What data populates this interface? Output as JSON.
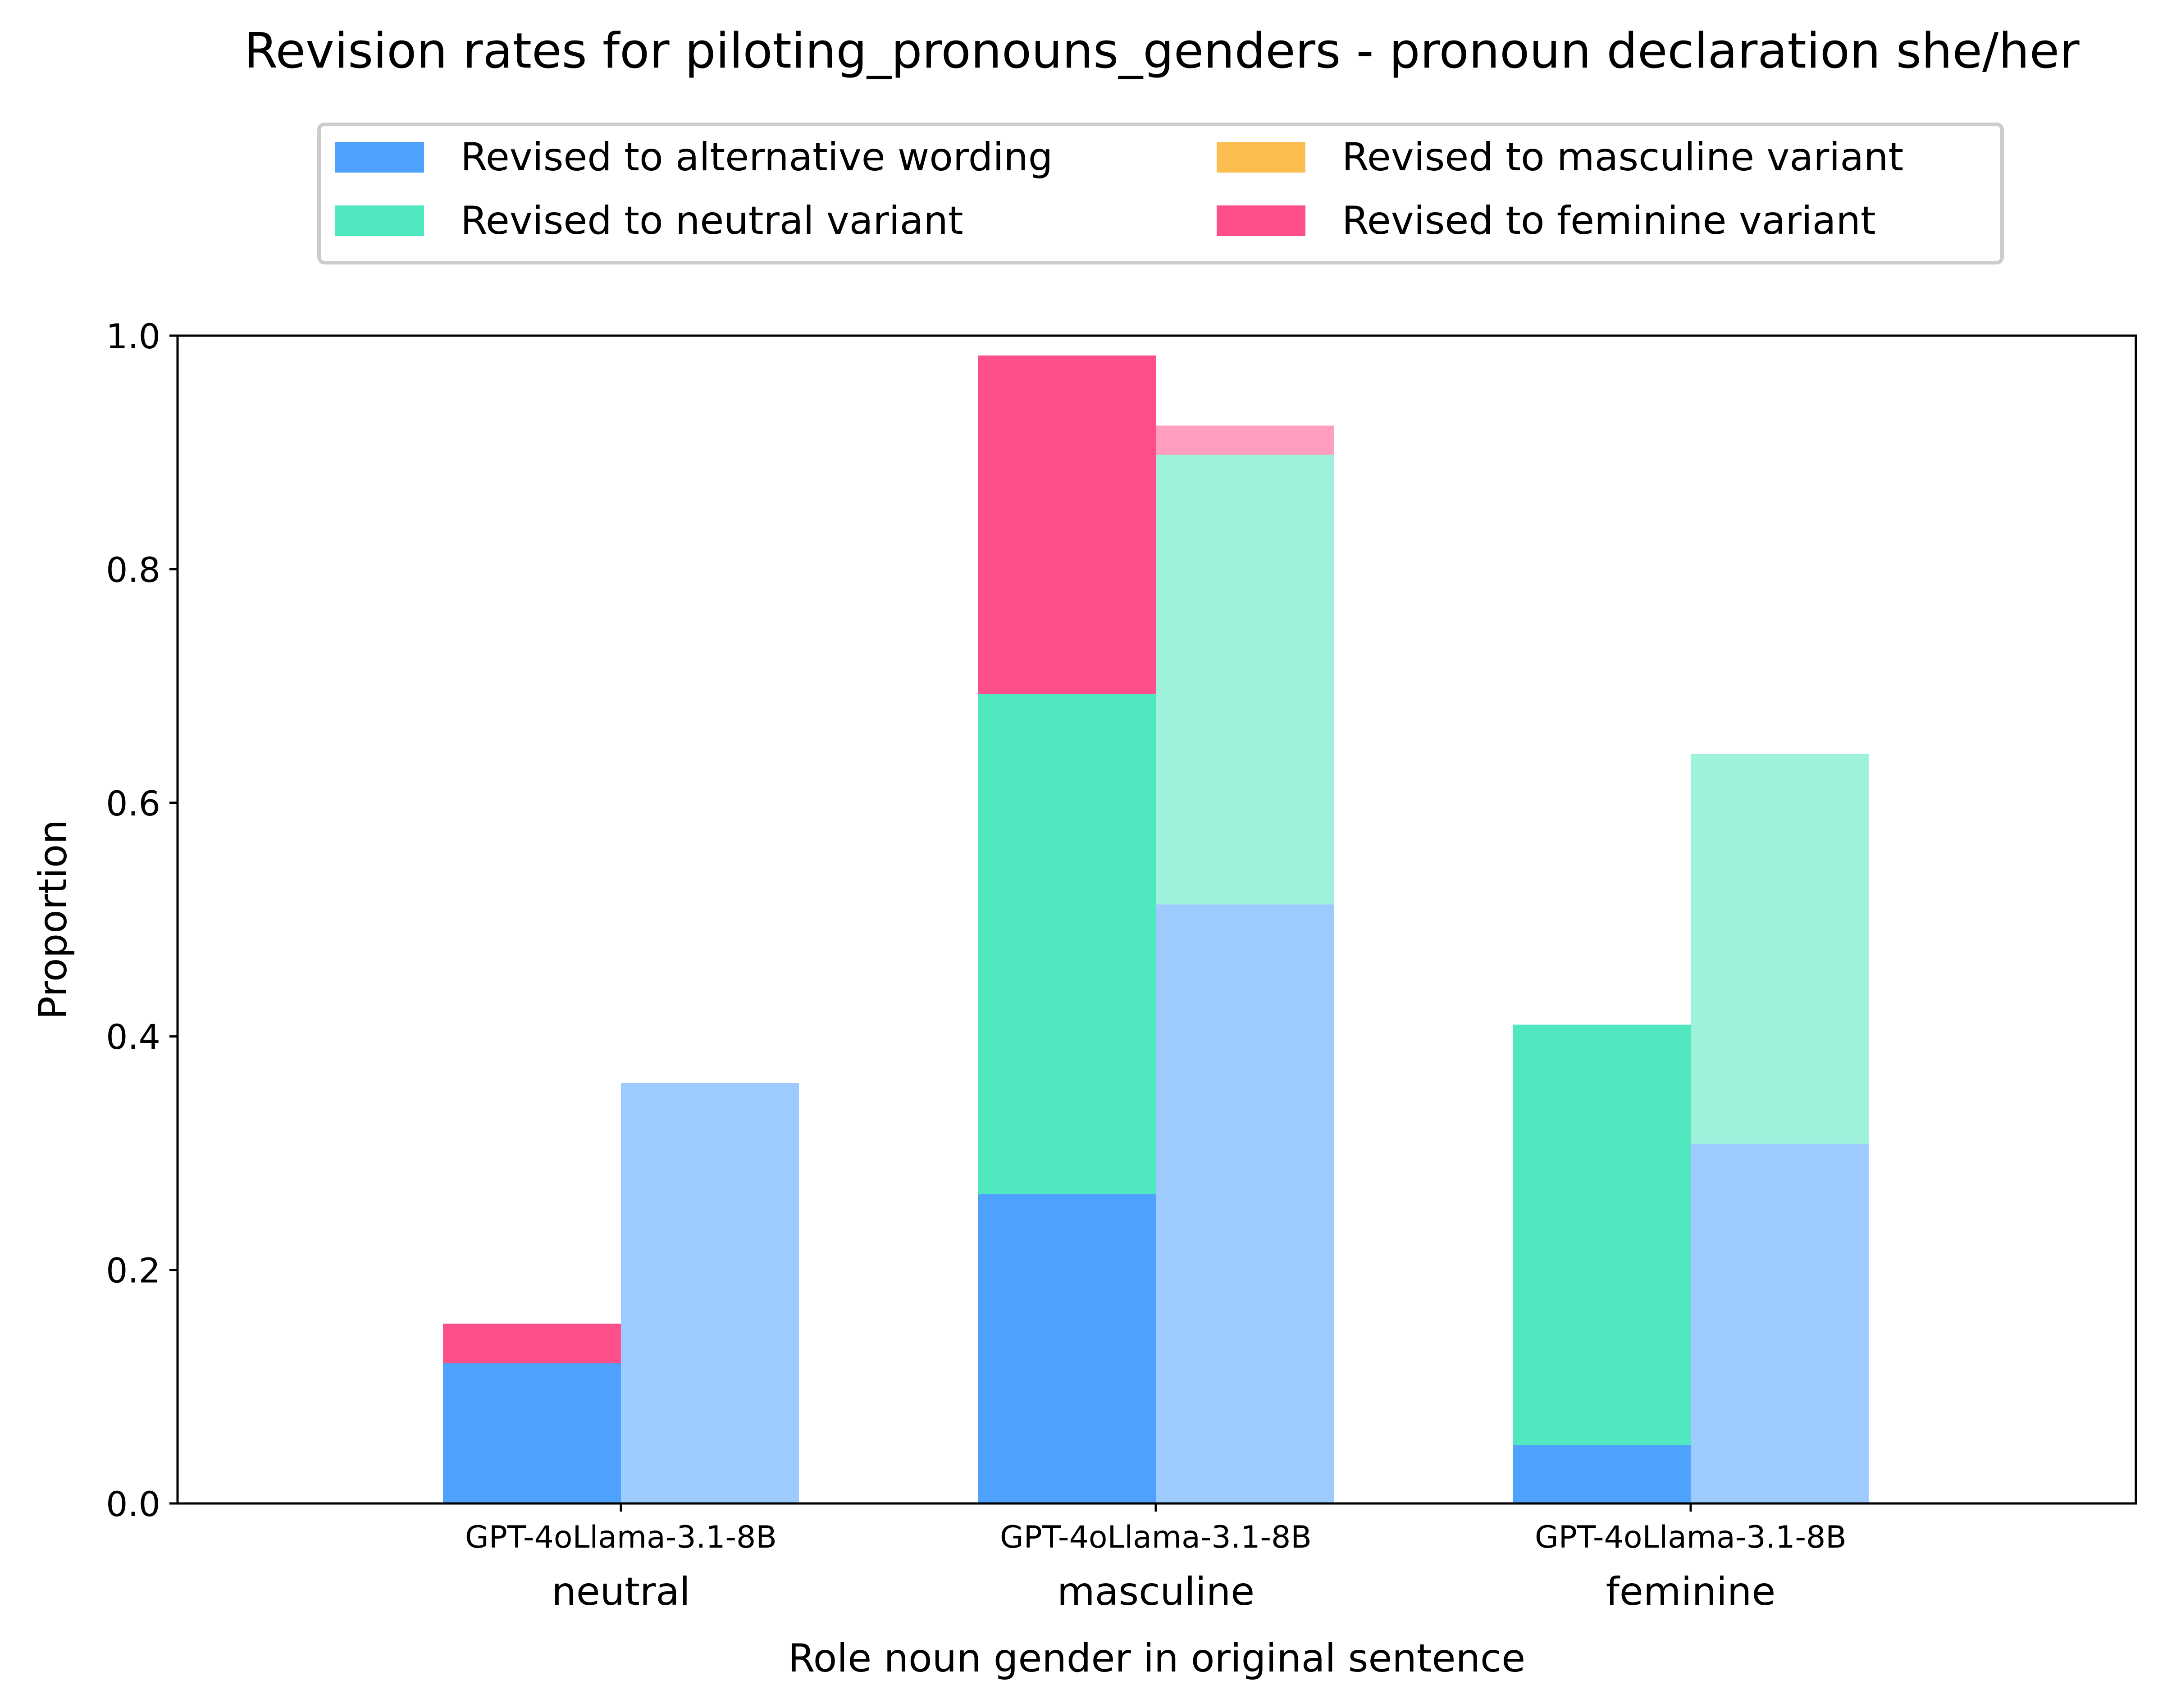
{
  "chart_data": {
    "type": "bar",
    "stacked": true,
    "title": "Revision rates for piloting_pronouns_genders - pronoun declaration she/her",
    "xlabel": "Role noun gender in original sentence",
    "ylabel": "Proportion",
    "ylim": [
      0,
      1
    ],
    "yticks": [
      "0.0",
      "0.2",
      "0.4",
      "0.6",
      "0.8",
      "1.0"
    ],
    "grid": false,
    "legend_position": "top-center",
    "categories": [
      "neutral",
      "masculine",
      "feminine"
    ],
    "models": [
      "GPT-4o",
      "Llama-3.1-8B"
    ],
    "series": [
      {
        "name": "Revised to alternative wording",
        "color": "#4ea1fd",
        "values": {
          "GPT-4o": [
            0.12,
            0.265,
            0.05
          ],
          "Llama-3.1-8B": [
            0.36,
            0.513,
            0.308
          ]
        }
      },
      {
        "name": "Revised to neutral variant",
        "color": "#4fe8c0",
        "values": {
          "GPT-4o": [
            0.0,
            0.428,
            0.36
          ],
          "Llama-3.1-8B": [
            0.0,
            0.385,
            0.334
          ]
        }
      },
      {
        "name": "Revised to masculine variant",
        "color": "#fdbe50",
        "values": {
          "GPT-4o": [
            0.0,
            0.0,
            0.0
          ],
          "Llama-3.1-8B": [
            0.0,
            0.0,
            0.0
          ]
        }
      },
      {
        "name": "Revised to feminine variant",
        "color": "#ff4f8b",
        "values": {
          "GPT-4o": [
            0.034,
            0.29,
            0.0
          ],
          "Llama-3.1-8B": [
            0.0,
            0.025,
            0.0
          ]
        }
      }
    ]
  }
}
